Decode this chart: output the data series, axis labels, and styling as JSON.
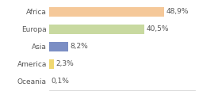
{
  "categories": [
    "Africa",
    "Europa",
    "Asia",
    "America",
    "Oceania"
  ],
  "values": [
    48.9,
    40.5,
    8.2,
    2.3,
    0.1
  ],
  "labels": [
    "48,9%",
    "40,5%",
    "8,2%",
    "2,3%",
    "0,1%"
  ],
  "bar_colors": [
    "#f5c899",
    "#c8d9a0",
    "#7b8ec4",
    "#f0d870",
    "#d8d8d8"
  ],
  "background_color": "#ffffff",
  "xlim": [
    0,
    62
  ],
  "label_fontsize": 6.5,
  "tick_fontsize": 6.5,
  "bar_height": 0.55
}
